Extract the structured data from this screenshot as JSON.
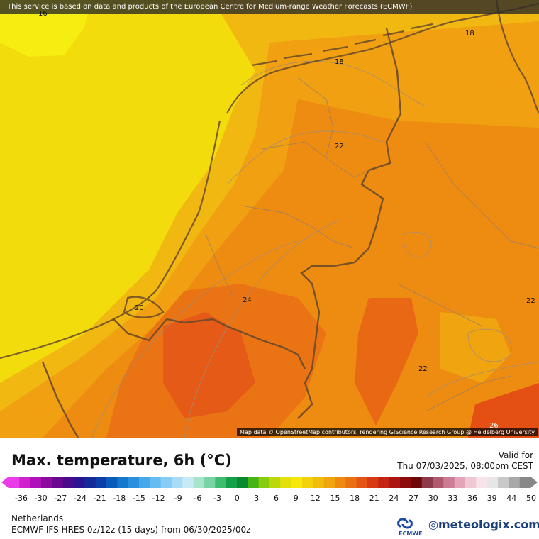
{
  "disclaimer": "This service is based on data and products of the European Centre for Medium-range Weather Forecasts (ECMWF)",
  "attribution": "Map data © OpenStreetMap contributors, rendering GIScience Research Group @ Heidelberg University",
  "contour_labels": [
    {
      "text": "16",
      "name": "contour-label-16"
    },
    {
      "text": "18",
      "name": "contour-label-18-north-east"
    },
    {
      "text": "18",
      "name": "contour-label-18-north"
    },
    {
      "text": "22",
      "name": "contour-label-22-central"
    },
    {
      "text": "24",
      "name": "contour-label-24"
    },
    {
      "text": "20",
      "name": "contour-label-20-coast"
    },
    {
      "text": "22",
      "name": "contour-label-22-east"
    },
    {
      "text": "22",
      "name": "contour-label-22-south-east"
    },
    {
      "text": "26",
      "name": "contour-label-26"
    }
  ],
  "legend": {
    "title": "Max. temperature, 6h (°C)",
    "valid_label": "Valid for",
    "valid_time": "Thu 07/03/2025, 08:00pm CEST",
    "ticks": [
      "-36",
      "-30",
      "-27",
      "-24",
      "-21",
      "-18",
      "-15",
      "-12",
      "-9",
      "-6",
      "-3",
      "0",
      "3",
      "6",
      "9",
      "12",
      "15",
      "18",
      "21",
      "24",
      "27",
      "30",
      "33",
      "36",
      "39",
      "44",
      "50"
    ],
    "colors": [
      "#e83ce8",
      "#d020d0",
      "#b010b8",
      "#8c0aa0",
      "#6a0890",
      "#4a0a8c",
      "#2a1490",
      "#142a98",
      "#0a3ea8",
      "#0a5cbc",
      "#1478cc",
      "#2a90dc",
      "#46a8e8",
      "#64bcf0",
      "#86ccf4",
      "#a8dcf6",
      "#c8eaf4",
      "#a8e4cc",
      "#78d4a4",
      "#3ebc70",
      "#14a04a",
      "#0a8a2c",
      "#46b414",
      "#86cc10",
      "#bcd80c",
      "#e4e00a",
      "#f6e80a",
      "#f4d20a",
      "#f2bc0c",
      "#f0a40e",
      "#ee8a10",
      "#ea7012",
      "#e45414",
      "#d83a14",
      "#c42414",
      "#ac1410",
      "#8c0c0c",
      "#6c0808",
      "#8c3a4a",
      "#b05a72",
      "#cc7c94",
      "#e2a4b6",
      "#f0c8d4",
      "#f6e4ea",
      "#e6e6e6",
      "#c8c8c8",
      "#a8a8a8",
      "#888888"
    ]
  },
  "region": "Netherlands",
  "model": "ECMWF IFS HRES 0z/12z (15 days) from 06/30/2025/00z",
  "logo_text": "ECMWF",
  "brand": "meteologix.com"
}
